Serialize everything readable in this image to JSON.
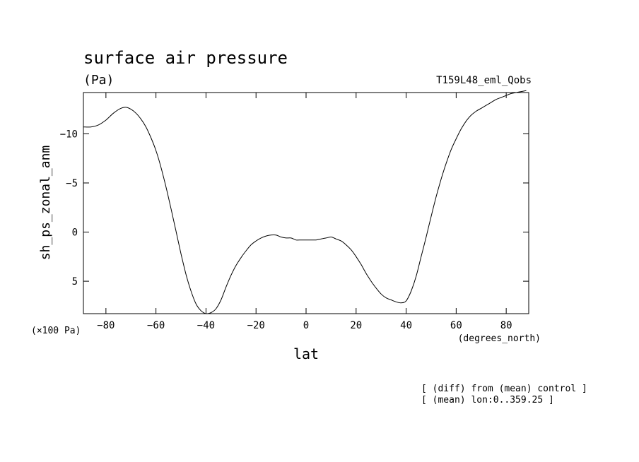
{
  "chart_data": {
    "type": "line",
    "title": "surface air pressure",
    "units": "(Pa)",
    "run_label": "T159L48_eml_Qobs",
    "xlabel": "lat",
    "xunits": "(degrees_north)",
    "ylabel": "sh_ps_zonal_anm",
    "yscale_note": "(×100 Pa)",
    "xlim": [
      -89,
      89
    ],
    "ylim": [
      8.3,
      -14.2
    ],
    "y_inverted": true,
    "x_ticks": [
      -80,
      -60,
      -40,
      -20,
      0,
      20,
      40,
      60,
      80
    ],
    "y_ticks": [
      -10,
      -5,
      0,
      5
    ],
    "grid": false,
    "notes": [
      "[ (diff) from (mean) control ]",
      "[ (mean) lon:0..359.25 ]"
    ],
    "series": [
      {
        "x": [
          -89,
          -86,
          -83,
          -80,
          -77,
          -74,
          -72,
          -70,
          -68,
          -66,
          -64,
          -62,
          -60,
          -58,
          -56,
          -54,
          -52,
          -50,
          -48,
          -46,
          -44,
          -42,
          -40,
          -38,
          -36,
          -34,
          -32,
          -30,
          -28,
          -26,
          -24,
          -22,
          -20,
          -18,
          -16,
          -14,
          -12,
          -10,
          -8,
          -6,
          -4,
          -2,
          0,
          2,
          4,
          6,
          8,
          10,
          12,
          14,
          16,
          18,
          20,
          22,
          24,
          26,
          28,
          30,
          32,
          34,
          36,
          38,
          40,
          42,
          44,
          46,
          48,
          50,
          52,
          54,
          56,
          58,
          60,
          62,
          64,
          66,
          68,
          70,
          72,
          74,
          76,
          78,
          80,
          82,
          84,
          86,
          88
        ],
        "y": [
          -10.7,
          -10.7,
          -10.9,
          -11.4,
          -12.1,
          -12.6,
          -12.7,
          -12.5,
          -12.1,
          -11.5,
          -10.7,
          -9.6,
          -8.3,
          -6.6,
          -4.6,
          -2.4,
          -0.1,
          2.2,
          4.3,
          6.0,
          7.3,
          8.0,
          8.3,
          8.2,
          7.8,
          6.9,
          5.6,
          4.4,
          3.4,
          2.6,
          1.9,
          1.3,
          0.9,
          0.6,
          0.4,
          0.3,
          0.3,
          0.5,
          0.6,
          0.6,
          0.8,
          0.8,
          0.8,
          0.8,
          0.8,
          0.7,
          0.6,
          0.5,
          0.7,
          0.9,
          1.3,
          1.8,
          2.5,
          3.3,
          4.2,
          5.0,
          5.7,
          6.3,
          6.7,
          6.9,
          7.1,
          7.2,
          7.0,
          6.0,
          4.5,
          2.5,
          0.5,
          -1.6,
          -3.6,
          -5.4,
          -7.0,
          -8.4,
          -9.5,
          -10.5,
          -11.3,
          -11.9,
          -12.3,
          -12.6,
          -12.9,
          -13.2,
          -13.5,
          -13.7,
          -13.9,
          -14.1,
          -14.2,
          -14.3,
          -14.4
        ]
      }
    ]
  }
}
